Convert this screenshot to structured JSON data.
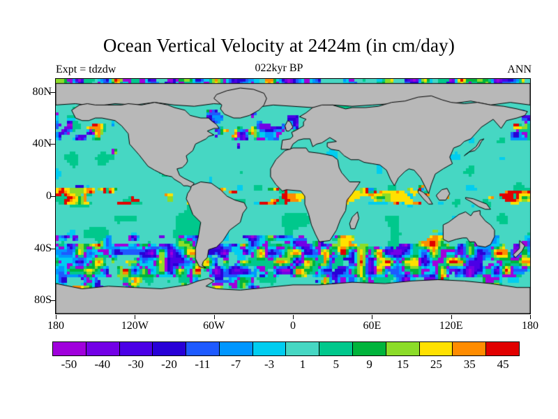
{
  "title": "Ocean Vertical Velocity at 2424m (in cm/day)",
  "header": {
    "left": "Expt = tdzdw",
    "center": "022kyr BP",
    "right": "ANN"
  },
  "chart_data": {
    "type": "heatmap",
    "title": "Ocean Vertical Velocity at 2424m (in cm/day)",
    "variable": "ocean vertical velocity",
    "depth": "2424m",
    "units": "cm/day",
    "experiment": "tdzdw",
    "time": "022kyr BP",
    "season": "ANN",
    "x_axis": {
      "ticks": [
        {
          "label": "180",
          "lon": -180
        },
        {
          "label": "120W",
          "lon": -120
        },
        {
          "label": "60W",
          "lon": -60
        },
        {
          "label": "0",
          "lon": 0
        },
        {
          "label": "60E",
          "lon": 60
        },
        {
          "label": "120E",
          "lon": 120
        },
        {
          "label": "180",
          "lon": 180
        }
      ]
    },
    "y_axis": {
      "ticks": [
        {
          "label": "80N",
          "lat": 80
        },
        {
          "label": "40N",
          "lat": 40
        },
        {
          "label": "0",
          "lat": 0
        },
        {
          "label": "40S",
          "lat": -40
        },
        {
          "label": "80S",
          "lat": -80
        }
      ]
    },
    "colorbar": {
      "cells": [
        {
          "label": "-50",
          "color": "#a000dc"
        },
        {
          "label": "-40",
          "color": "#7300e6"
        },
        {
          "label": "-30",
          "color": "#4b00e6"
        },
        {
          "label": "-20",
          "color": "#2800d7"
        },
        {
          "label": "-11",
          "color": "#1e5aff"
        },
        {
          "label": "-7",
          "color": "#0096ff"
        },
        {
          "label": "-3",
          "color": "#00cdf0"
        },
        {
          "label": "1",
          "color": "#46d7c3"
        },
        {
          "label": "5",
          "color": "#00c88c"
        },
        {
          "label": "9",
          "color": "#00b43c"
        },
        {
          "label": "15",
          "color": "#8cdc28"
        },
        {
          "label": "25",
          "color": "#ffe100"
        },
        {
          "label": "35",
          "color": "#ff8c00"
        },
        {
          "label": "45",
          "color": "#e10000"
        }
      ]
    },
    "land_color": "#b8b8b8",
    "ocean_base_color": "#46d7c3",
    "field_summary": "Ocean interiors show near-uniform weak vertical velocity (teal, around 1 cm/day). Strong alternating upwelling/downwelling cells (yellows/oranges/reds and blues/purples, roughly +/-10 to 50 cm/day) fill the Southern Ocean between about 35S and 65S, the equatorial Pacific and Atlantic as zonal streaks, the northern North Atlantic and North Pacific, and the Arctic margin. Land and masked shallow areas are gray with black coastlines."
  }
}
